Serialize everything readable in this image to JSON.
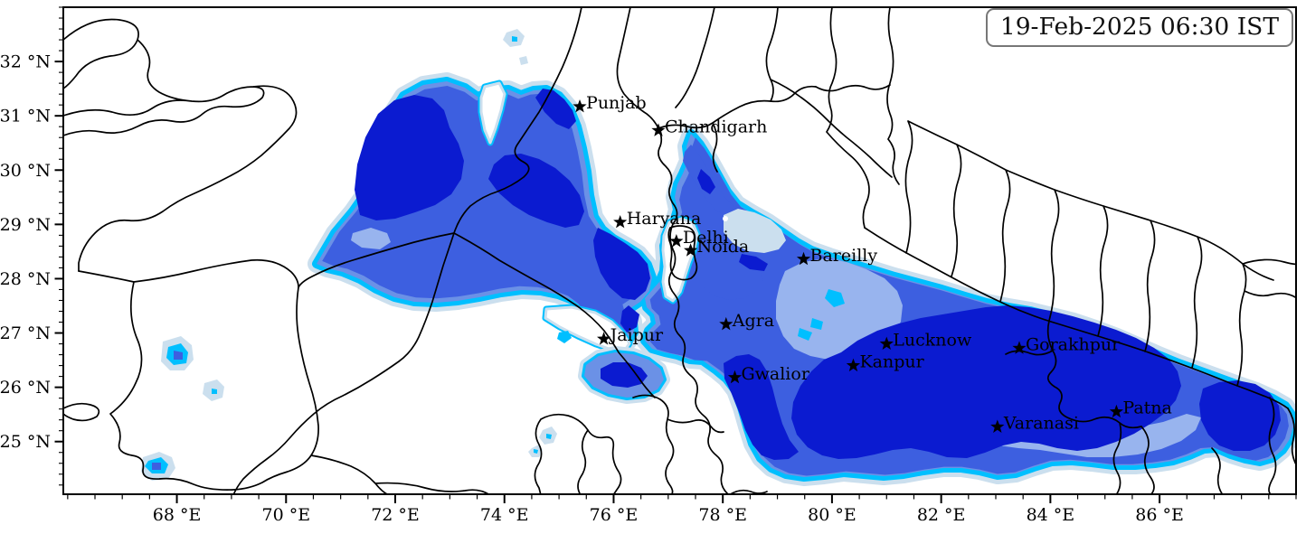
{
  "timestamp_box": {
    "text": "19-Feb-2025 06:30 IST"
  },
  "axes": {
    "x_ticks": [
      {
        "lon": 68,
        "label": "68 °E"
      },
      {
        "lon": 70,
        "label": "70 °E"
      },
      {
        "lon": 72,
        "label": "72 °E"
      },
      {
        "lon": 74,
        "label": "74 °E"
      },
      {
        "lon": 76,
        "label": "76 °E"
      },
      {
        "lon": 78,
        "label": "78 °E"
      },
      {
        "lon": 80,
        "label": "80 °E"
      },
      {
        "lon": 82,
        "label": "82 °E"
      },
      {
        "lon": 84,
        "label": "84 °E"
      },
      {
        "lon": 86,
        "label": "86 °E"
      }
    ],
    "y_ticks": [
      {
        "lat": 32,
        "label": "32 °N"
      },
      {
        "lat": 31,
        "label": "31 °N"
      },
      {
        "lat": 30,
        "label": "30 °N"
      },
      {
        "lat": 29,
        "label": "29 °N"
      },
      {
        "lat": 28,
        "label": "28 °N"
      },
      {
        "lat": 27,
        "label": "27 °N"
      },
      {
        "lat": 26,
        "label": "26 °N"
      },
      {
        "lat": 25,
        "label": "25 °N"
      }
    ],
    "minor_step_lon": 0.5,
    "minor_step_lat": 0.2
  },
  "map": {
    "extent": {
      "lon_min": 65.92,
      "lon_max": 88.5,
      "lat_min": 24.03,
      "lat_max": 33.0
    },
    "cities": [
      {
        "name": "Punjab",
        "lon": 75.38,
        "lat": 31.17
      },
      {
        "name": "Chandigarh",
        "lon": 76.82,
        "lat": 30.73
      },
      {
        "name": "Haryana",
        "lon": 76.12,
        "lat": 29.04
      },
      {
        "name": "Delhi",
        "lon": 77.15,
        "lat": 28.69
      },
      {
        "name": "Noida",
        "lon": 77.41,
        "lat": 28.52
      },
      {
        "name": "Bareilly",
        "lon": 79.48,
        "lat": 28.36
      },
      {
        "name": "Agra",
        "lon": 78.06,
        "lat": 27.16
      },
      {
        "name": "Jaipur",
        "lon": 75.82,
        "lat": 26.89
      },
      {
        "name": "Lucknow",
        "lon": 81.0,
        "lat": 26.8
      },
      {
        "name": "Kanpur",
        "lon": 80.39,
        "lat": 26.4
      },
      {
        "name": "Gwalior",
        "lon": 78.22,
        "lat": 26.18
      },
      {
        "name": "Gorakhpur",
        "lon": 83.43,
        "lat": 26.72
      },
      {
        "name": "Varanasi",
        "lon": 83.03,
        "lat": 25.27
      },
      {
        "name": "Patna",
        "lon": 85.21,
        "lat": 25.55
      }
    ],
    "fog_palette": {
      "very_light": "#cbdfee",
      "cyan": "#00bfff",
      "light_periwinkle": "#98b4ee",
      "cornflower": "#6b91e6",
      "royal": "#3d5fe0",
      "dark": "#0b1bd0"
    },
    "boundary_color": "#000000",
    "background": "#ffffff"
  }
}
